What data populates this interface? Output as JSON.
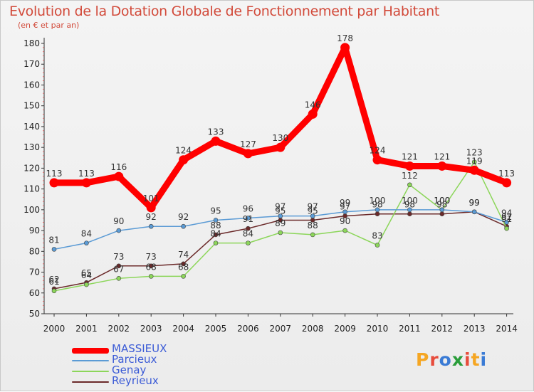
{
  "title": "Evolution de la Dotation Globale de Fonctionnement par Habitant",
  "subtitle": "(en € et par an)",
  "logo": "Proxiti",
  "chart_data": {
    "type": "line",
    "title": "Evolution de la Dotation Globale de Fonctionnement par Habitant",
    "subtitle": "(en € et par an)",
    "x": [
      2000,
      2001,
      2002,
      2003,
      2004,
      2005,
      2006,
      2007,
      2008,
      2009,
      2010,
      2011,
      2012,
      2013,
      2014
    ],
    "ylim": [
      50,
      180
    ],
    "yticks": [
      50,
      60,
      70,
      80,
      90,
      100,
      110,
      120,
      130,
      140,
      150,
      160,
      170,
      180
    ],
    "grid": false,
    "legend_position": "bottom-left",
    "series": [
      {
        "name": "MASSIEUX",
        "color": "#ff0000",
        "values": [
          113,
          113,
          116,
          101,
          124,
          133,
          127,
          130,
          146,
          178,
          124,
          121,
          121,
          119,
          113
        ]
      },
      {
        "name": "Parcieux",
        "color": "#5b9bd5",
        "values": [
          81,
          84,
          90,
          92,
          92,
          95,
          96,
          97,
          97,
          99,
          100,
          100,
          100,
          99,
          94
        ]
      },
      {
        "name": "Genay",
        "color": "#8cd65a",
        "values": [
          61,
          64,
          67,
          68,
          68,
          84,
          84,
          89,
          88,
          90,
          83,
          112,
          100,
          123,
          91
        ]
      },
      {
        "name": "Reyrieux",
        "color": "#6b2a2a",
        "values": [
          62,
          65,
          73,
          73,
          74,
          88,
          91,
          95,
          95,
          97,
          98,
          98,
          98,
          99,
          92
        ]
      }
    ]
  }
}
